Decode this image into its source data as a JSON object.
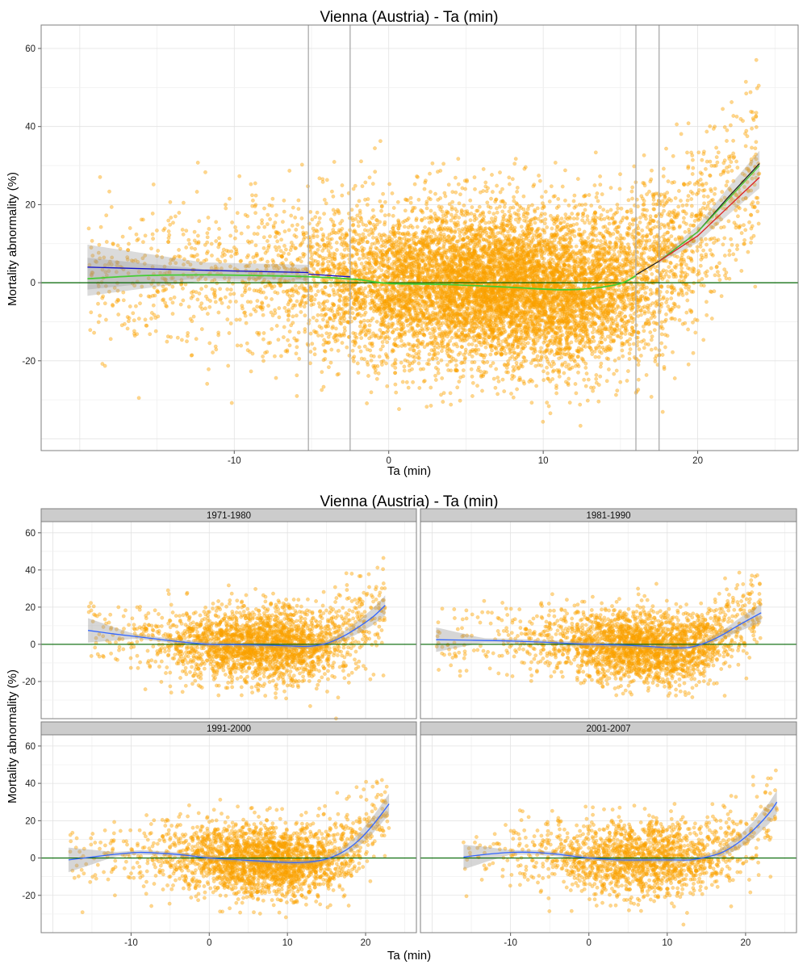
{
  "colors": {
    "points": "#ffa500",
    "zero_line": "#006400",
    "smooth_blue": "#3366ff",
    "seg_blue": "#1010cc",
    "seg_green": "#44cc33",
    "seg_red": "#dd2222",
    "seg_black": "#222222",
    "ribbon": "#999999",
    "strip_fill": "#cccccc",
    "vline": "#aaaaaa"
  },
  "chart_data": [
    {
      "type": "scatter",
      "title": "Vienna (Austria) - Ta (min)",
      "xlabel": "Ta (min)",
      "ylabel": "Mortality abnormality (%)",
      "xlim": [
        -22.5,
        26.5
      ],
      "ylim": [
        -43,
        66
      ],
      "xticks": [
        -10,
        0,
        10,
        20
      ],
      "yticks": [
        -20,
        0,
        20,
        40,
        60
      ],
      "grid": true,
      "reference_line_y": 0,
      "vertical_lines_x": [
        -5.2,
        -2.5,
        16.0,
        17.5
      ],
      "point_cloud": {
        "count": 9500,
        "x_range": [
          -19.5,
          24
        ],
        "y_center": 0,
        "y_spread": 10,
        "y_min_observed": -38,
        "y_max_observed": 61
      },
      "series": [
        {
          "name": "",
          "color_key": "seg_blue",
          "style": "line",
          "x": [
            -19.5,
            -15,
            -10,
            -5.2
          ],
          "y": [
            4.0,
            3.5,
            3.0,
            2.6
          ]
        },
        {
          "name": "",
          "color_key": "seg_blue",
          "style": "line",
          "x": [
            -5.2,
            -2.5
          ],
          "y": [
            2.2,
            1.5
          ]
        },
        {
          "name": "",
          "color_key": "seg_green",
          "style": "smooth",
          "x": [
            -19.5,
            -16,
            -12,
            -8,
            -5,
            -2,
            0,
            4,
            8,
            11,
            13,
            15,
            16
          ],
          "y": [
            1.0,
            1.8,
            2.0,
            1.8,
            1.5,
            0.8,
            -0.2,
            -0.5,
            -1.2,
            -1.8,
            -1.5,
            -0.2,
            1.8
          ]
        },
        {
          "name": "",
          "color_key": "seg_black",
          "style": "line",
          "x": [
            16.0,
            17.5
          ],
          "y": [
            2.0,
            5.5
          ]
        },
        {
          "name": "",
          "color_key": "seg_black",
          "style": "line",
          "x": [
            17.5,
            20,
            22,
            24
          ],
          "y": [
            5.5,
            13,
            22,
            30.5
          ]
        },
        {
          "name": "",
          "color_key": "seg_green",
          "style": "line",
          "x": [
            17.5,
            20,
            22,
            24
          ],
          "y": [
            5.5,
            13,
            21.5,
            30
          ]
        },
        {
          "name": "",
          "color_key": "seg_red",
          "style": "line",
          "x": [
            17.5,
            20,
            22,
            24
          ],
          "y": [
            5.5,
            12,
            19.5,
            27
          ]
        }
      ]
    },
    {
      "type": "scatter",
      "title": "Vienna (Austria) - Ta (min)",
      "xlabel": "Ta (min)",
      "ylabel": "Mortality abnormality (%)",
      "xlim": [
        -21.5,
        26.5
      ],
      "ylim": [
        -40,
        66
      ],
      "xticks": [
        -10,
        0,
        10,
        20
      ],
      "yticks": [
        -20,
        0,
        20,
        40,
        60
      ],
      "grid": true,
      "reference_line_y": 0,
      "panels": [
        {
          "label": "1971-1980",
          "point_cloud": {
            "count": 2400,
            "x_range": [
              -15.5,
              22.5
            ],
            "y_spread": 10
          },
          "smooth": {
            "x": [
              -15.5,
              -12,
              -8,
              -4,
              0,
              4,
              8,
              11,
              13,
              15,
              17,
              19,
              21,
              22.5
            ],
            "y": [
              7.5,
              5.5,
              3.5,
              1.5,
              0.0,
              -0.2,
              -0.5,
              -1.0,
              -1.0,
              0.5,
              4.0,
              9.0,
              15.0,
              21.0
            ]
          }
        },
        {
          "label": "1981-1990",
          "point_cloud": {
            "count": 2400,
            "x_range": [
              -19.5,
              22
            ],
            "y_spread": 10
          },
          "smooth": {
            "x": [
              -19.5,
              -15,
              -10,
              -5,
              0,
              5,
              9,
              11,
              13,
              15,
              17,
              19,
              22
            ],
            "y": [
              2.5,
              2.2,
              1.8,
              1.0,
              0.0,
              -0.5,
              -1.5,
              -2.0,
              -1.5,
              1.0,
              5.0,
              10.0,
              17.0
            ]
          }
        },
        {
          "label": "1991-2000",
          "point_cloud": {
            "count": 2400,
            "x_range": [
              -18,
              23
            ],
            "y_spread": 10
          },
          "smooth": {
            "x": [
              -18,
              -15,
              -12,
              -9,
              -6,
              -3,
              0,
              4,
              8,
              11,
              13,
              15,
              17,
              19,
              21,
              23
            ],
            "y": [
              -1.0,
              0.5,
              2.0,
              3.0,
              2.5,
              1.5,
              0.0,
              -1.0,
              -2.0,
              -2.5,
              -2.0,
              -0.5,
              3.0,
              9.0,
              18.0,
              29.0
            ]
          }
        },
        {
          "label": "2001-2007",
          "point_cloud": {
            "count": 1700,
            "x_range": [
              -16,
              24
            ],
            "y_spread": 10
          },
          "smooth": {
            "x": [
              -16,
              -13,
              -10,
              -7,
              -4,
              0,
              4,
              8,
              11,
              13,
              15,
              17,
              19,
              21,
              23,
              24
            ],
            "y": [
              0.5,
              2.0,
              3.0,
              3.0,
              2.0,
              0.0,
              -1.0,
              -1.0,
              -1.0,
              -1.0,
              0.5,
              3.0,
              8.0,
              15.0,
              24.0,
              30.0
            ]
          }
        }
      ]
    }
  ]
}
